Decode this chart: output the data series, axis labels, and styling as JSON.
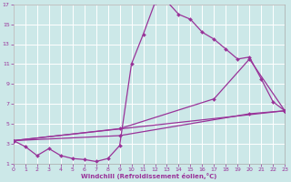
{
  "xlabel": "Windchill (Refroidissement éolien,°C)",
  "bg_color": "#cce8e8",
  "grid_color": "#ffffff",
  "line_color": "#993399",
  "xlim": [
    0,
    23
  ],
  "ylim": [
    1,
    17
  ],
  "xticks": [
    0,
    1,
    2,
    3,
    4,
    5,
    6,
    7,
    8,
    9,
    10,
    11,
    12,
    13,
    14,
    15,
    16,
    17,
    18,
    19,
    20,
    21,
    22,
    23
  ],
  "yticks": [
    1,
    3,
    5,
    7,
    9,
    11,
    13,
    15,
    17
  ],
  "series": [
    {
      "x": [
        0,
        1,
        2,
        3,
        4,
        5,
        6,
        7,
        8,
        9,
        10,
        11,
        12,
        13,
        14,
        15,
        16,
        17,
        18,
        19,
        20,
        21,
        22,
        23
      ],
      "y": [
        3.3,
        2.7,
        1.8,
        2.5,
        1.8,
        1.5,
        1.4,
        1.2,
        1.5,
        2.8,
        11.0,
        14.0,
        17.2,
        17.3,
        16.0,
        15.5,
        14.2,
        13.5,
        12.5,
        11.5,
        11.7,
        9.5,
        7.2,
        6.3
      ]
    },
    {
      "x": [
        0,
        23
      ],
      "y": [
        3.3,
        6.3
      ]
    },
    {
      "x": [
        0,
        9,
        20,
        23
      ],
      "y": [
        3.3,
        3.8,
        6.0,
        6.3
      ]
    },
    {
      "x": [
        0,
        9,
        17,
        20,
        23
      ],
      "y": [
        3.3,
        4.5,
        7.5,
        11.5,
        6.3
      ]
    }
  ]
}
